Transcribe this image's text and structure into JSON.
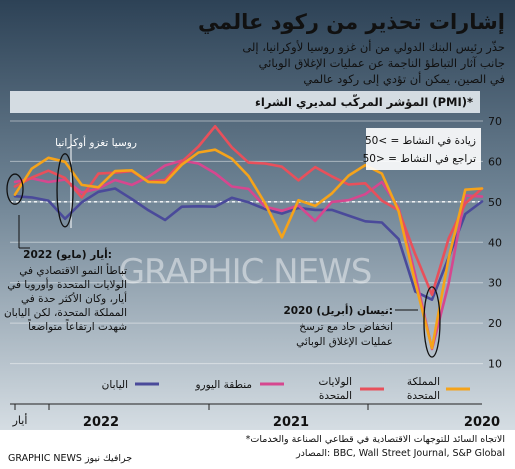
{
  "title": "إشارات تحذير من ركود عالمي",
  "intro": [
    "حذّر رئيس البنك الدولي من أن غزو روسيا لأوكرانيا، إلى",
    "جانب آثار التباطؤ الناجمة عن عمليات الإغلاق الوبائي",
    "في الصين، يمكن أن تؤدي إلى ركود عالمي"
  ],
  "chart_header": "المؤشر المركّب لمديري الشراء (PMI)*",
  "legend_box": [
    "50< = زيادة في النشاط",
    "50> = تراجع في النشاط"
  ],
  "annotations": {
    "invasion": "روسيا تغزو أوكرانيا",
    "may2022_title": "أيار (مايو) 2022:",
    "may2022_body": [
      "تباطأ النمو الاقتصادي في",
      "الولايات المتحدة وأوروبا في",
      "أيار، وكان الأكثر حدة في",
      "المملكة المتحدة، لكن اليابان",
      "شهدت ارتفاعاً متواضعاً"
    ],
    "apr2020_title": "نيسان (أبريل) 2020:",
    "apr2020_body": [
      "انخفاض حاد مع ترسخ",
      "عمليات الإغلاق الوبائي"
    ]
  },
  "x_labels": {
    "may": "أيار",
    "y2022": "2022",
    "y2021": "2021",
    "y2020": "2020"
  },
  "footnote": "*الاتجاه السائد للتوجهات الاقتصادية في قطاعي الصناعة والخدمات",
  "source": "المصادر: BBC, Wall Street Journal, S&P Global",
  "credit": "GRAPHIC NEWS جرافيك نيوز",
  "watermark": "GRAPHIC NEWS",
  "colors": {
    "uk": "#f5a31a",
    "us": "#e8505b",
    "euro": "#d6478f",
    "japan": "#4a4a9a",
    "bg_top": "#2d4256",
    "bg_bottom": "#d5dde3"
  },
  "chart_data": {
    "type": "line",
    "x_order": "time runs right-to-left (newest on left)",
    "x": [
      "2022-05",
      "2022-04",
      "2022-03",
      "2022-02",
      "2022-01",
      "2021-12",
      "2021-11",
      "2021-10",
      "2021-09",
      "2021-08",
      "2021-07",
      "2021-06",
      "2021-05",
      "2021-04",
      "2021-03",
      "2021-02",
      "2021-01",
      "2020-12",
      "2020-11",
      "2020-10",
      "2020-09",
      "2020-08",
      "2020-07",
      "2020-06",
      "2020-05",
      "2020-04",
      "2020-03",
      "2020-02",
      "2020-01"
    ],
    "ylim": [
      0,
      70
    ],
    "yticks": [
      0,
      10,
      20,
      30,
      40,
      50,
      60,
      70
    ],
    "reference_line": 50,
    "series": [
      {
        "name": "المملكة المتحدة",
        "color": "#f5a31a",
        "values": [
          51.8,
          58.2,
          60.9,
          59.9,
          54.2,
          53.6,
          57.6,
          57.8,
          54.9,
          54.8,
          59.2,
          62.2,
          62.9,
          60.7,
          56.4,
          49.6,
          41.2,
          50.4,
          49.0,
          52.1,
          56.5,
          59.1,
          57.0,
          47.7,
          30.0,
          13.8,
          36.0,
          53.0,
          53.3
        ]
      },
      {
        "name": "الولايات المتحدة",
        "color": "#e8505b",
        "values": [
          53.8,
          56.0,
          57.7,
          55.9,
          51.1,
          57.0,
          57.2,
          57.6,
          55.0,
          55.4,
          59.9,
          63.7,
          68.7,
          63.5,
          59.7,
          59.5,
          58.7,
          55.3,
          58.6,
          56.3,
          54.3,
          54.6,
          50.3,
          47.9,
          37.0,
          27.0,
          40.9,
          49.6,
          53.3
        ]
      },
      {
        "name": "منطقة اليورو",
        "color": "#d6478f",
        "values": [
          54.9,
          55.8,
          54.9,
          55.5,
          52.3,
          53.3,
          55.4,
          54.2,
          56.2,
          59.0,
          60.2,
          59.5,
          57.1,
          53.8,
          53.2,
          48.8,
          47.8,
          49.1,
          45.3,
          50.0,
          50.4,
          51.9,
          54.9,
          48.5,
          31.9,
          13.6,
          29.7,
          51.6,
          51.3
        ]
      },
      {
        "name": "اليابان",
        "color": "#4a4a9a",
        "values": [
          51.4,
          51.1,
          50.3,
          45.8,
          49.9,
          52.5,
          53.3,
          50.7,
          47.9,
          45.5,
          48.8,
          48.9,
          48.8,
          51.0,
          49.9,
          48.2,
          47.1,
          48.5,
          48.0,
          48.0,
          46.6,
          45.2,
          44.9,
          40.8,
          27.8,
          25.8,
          36.2,
          47.0,
          50.1
        ]
      }
    ]
  }
}
